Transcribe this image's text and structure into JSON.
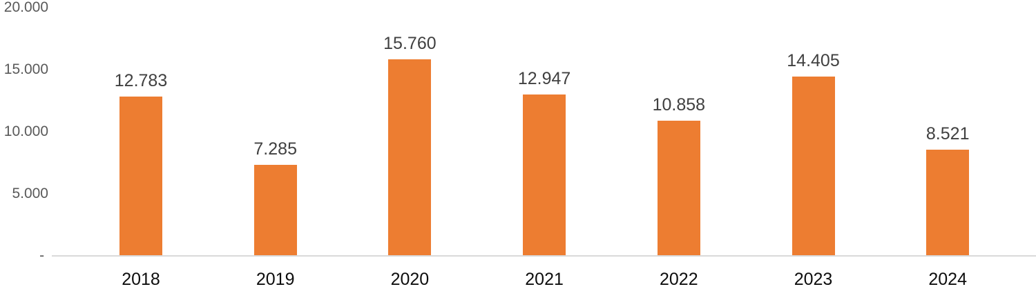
{
  "chart_data": {
    "type": "bar",
    "title": "",
    "xlabel": "",
    "ylabel": "",
    "categories": [
      "2018",
      "2019",
      "2020",
      "2021",
      "2022",
      "2023",
      "2024"
    ],
    "values": [
      12783,
      7285,
      15760,
      12947,
      10858,
      14405,
      8521
    ],
    "value_labels": [
      "12.783",
      "7.285",
      "15.760",
      "12.947",
      "10.858",
      "14.405",
      "8.521"
    ],
    "ylim": [
      0,
      20000
    ],
    "y_ticks": [
      {
        "label": "20.000",
        "value": 20000
      },
      {
        "label": "15.000",
        "value": 15000
      },
      {
        "label": "10.000",
        "value": 10000
      },
      {
        "label": "5.000",
        "value": 5000
      },
      {
        "label": " - ",
        "value": 0
      }
    ],
    "grid": false,
    "legend": false,
    "colors": {
      "bar": "#ED7D31",
      "axis_line": "#D9D9D9",
      "y_tick_label": "#595959",
      "x_tick_label": "#0d0d0d",
      "value_label": "#404040",
      "background": "#ffffff"
    }
  }
}
